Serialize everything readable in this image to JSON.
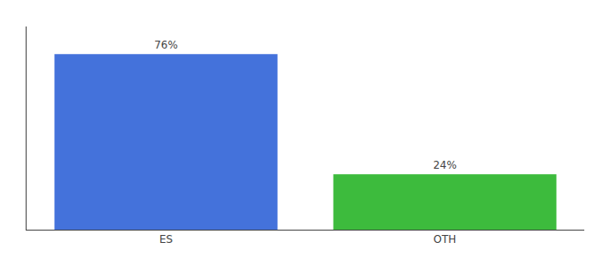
{
  "chart_data": {
    "type": "bar",
    "categories": [
      "ES",
      "OTH"
    ],
    "values": [
      76,
      24
    ],
    "value_labels": [
      "76%",
      "24%"
    ],
    "colors": [
      "#4472db",
      "#3dbb3d"
    ],
    "ylim": [
      0,
      88
    ],
    "yticks": [],
    "grid": false,
    "tick_labels": "x",
    "data_labels": true
  }
}
